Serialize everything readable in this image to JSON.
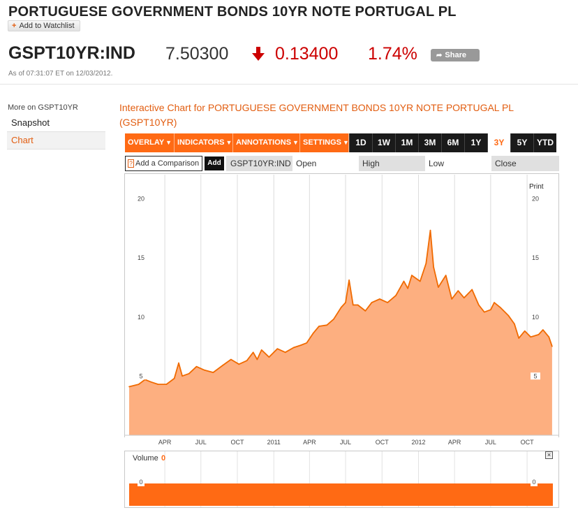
{
  "header": {
    "title": "PORTUGUESE GOVERNMENT BONDS 10YR NOTE PORTUGAL PL",
    "watchlist_label": "Add to Watchlist"
  },
  "quote": {
    "symbol": "GSPT10YR:IND",
    "price": "7.50300",
    "change": "0.13400",
    "change_pct": "1.74%",
    "direction": "down",
    "share_label": "Share",
    "as_of": "As of 07:31:07 ET on 12/03/2012."
  },
  "sidebar": {
    "heading": "More on GSPT10YR",
    "items": [
      {
        "label": "Snapshot"
      },
      {
        "label": "Chart"
      }
    ]
  },
  "chart_header": {
    "title": "Interactive Chart for PORTUGUESE GOVERNMENT BONDS 10YR NOTE PORTUGAL PL (GSPT10YR)"
  },
  "toolbar": {
    "menus": [
      "OVERLAY",
      "INDICATORS",
      "ANNOTATIONS",
      "SETTINGS"
    ],
    "ranges": [
      "1D",
      "1W",
      "1M",
      "3M",
      "6M",
      "1Y",
      "3Y",
      "5Y",
      "YTD"
    ],
    "active_range": "3Y"
  },
  "comparison": {
    "placeholder": "Add a Comparison",
    "help": "?",
    "add_label": "Add",
    "symbol": "GSPT10YR:IND",
    "open_label": "Open",
    "high_label": "High",
    "low_label": "Low",
    "close_label": "Close"
  },
  "print_label": "Print",
  "volume": {
    "label": "Volume",
    "value": "0",
    "close_glyph": "×",
    "axis_left": "0",
    "axis_right": "0"
  },
  "colors": {
    "accent": "#ff6a14",
    "line": "#f06a00",
    "fill": "#fdaf80",
    "down": "#cc0000"
  },
  "chart_data": {
    "type": "area",
    "title": "",
    "xlabel": "",
    "ylabel": "",
    "ylim": [
      0,
      22
    ],
    "yticks": [
      5,
      10,
      15,
      20
    ],
    "xlim": [
      "2010-01-01",
      "2012-12-05"
    ],
    "xticks": [
      {
        "label": "APR",
        "date": "2010-04-01"
      },
      {
        "label": "JUL",
        "date": "2010-07-01"
      },
      {
        "label": "OCT",
        "date": "2010-10-01"
      },
      {
        "label": "2011",
        "date": "2011-01-01"
      },
      {
        "label": "APR",
        "date": "2011-04-01"
      },
      {
        "label": "JUL",
        "date": "2011-07-01"
      },
      {
        "label": "OCT",
        "date": "2011-10-01"
      },
      {
        "label": "2012",
        "date": "2012-01-01"
      },
      {
        "label": "APR",
        "date": "2012-04-01"
      },
      {
        "label": "JUL",
        "date": "2012-07-01"
      },
      {
        "label": "OCT",
        "date": "2012-10-01"
      }
    ],
    "series": [
      {
        "points": [
          [
            "2010-01-01",
            4.1
          ],
          [
            "2010-01-25",
            4.3
          ],
          [
            "2010-02-10",
            4.7
          ],
          [
            "2010-02-25",
            4.5
          ],
          [
            "2010-03-15",
            4.3
          ],
          [
            "2010-04-05",
            4.3
          ],
          [
            "2010-04-25",
            4.8
          ],
          [
            "2010-05-06",
            6.1
          ],
          [
            "2010-05-15",
            5.0
          ],
          [
            "2010-06-01",
            5.2
          ],
          [
            "2010-06-20",
            5.8
          ],
          [
            "2010-07-10",
            5.5
          ],
          [
            "2010-08-01",
            5.3
          ],
          [
            "2010-08-25",
            5.9
          ],
          [
            "2010-09-15",
            6.4
          ],
          [
            "2010-10-05",
            6.0
          ],
          [
            "2010-10-25",
            6.3
          ],
          [
            "2010-11-10",
            7.0
          ],
          [
            "2010-11-20",
            6.4
          ],
          [
            "2010-12-01",
            7.2
          ],
          [
            "2010-12-20",
            6.6
          ],
          [
            "2011-01-10",
            7.3
          ],
          [
            "2011-01-30",
            7.0
          ],
          [
            "2011-02-20",
            7.4
          ],
          [
            "2011-03-10",
            7.6
          ],
          [
            "2011-03-25",
            7.8
          ],
          [
            "2011-04-10",
            8.6
          ],
          [
            "2011-04-25",
            9.2
          ],
          [
            "2011-05-15",
            9.3
          ],
          [
            "2011-06-01",
            9.8
          ],
          [
            "2011-06-20",
            10.8
          ],
          [
            "2011-07-01",
            11.2
          ],
          [
            "2011-07-10",
            13.1
          ],
          [
            "2011-07-20",
            11.0
          ],
          [
            "2011-08-01",
            11.0
          ],
          [
            "2011-08-20",
            10.5
          ],
          [
            "2011-09-05",
            11.2
          ],
          [
            "2011-09-25",
            11.5
          ],
          [
            "2011-10-15",
            11.2
          ],
          [
            "2011-11-05",
            11.8
          ],
          [
            "2011-11-25",
            13.0
          ],
          [
            "2011-12-05",
            12.4
          ],
          [
            "2011-12-15",
            13.5
          ],
          [
            "2012-01-05",
            13.0
          ],
          [
            "2012-01-20",
            14.5
          ],
          [
            "2012-01-31",
            17.3
          ],
          [
            "2012-02-08",
            14.2
          ],
          [
            "2012-02-20",
            12.5
          ],
          [
            "2012-03-10",
            13.5
          ],
          [
            "2012-03-25",
            11.5
          ],
          [
            "2012-04-10",
            12.2
          ],
          [
            "2012-04-25",
            11.6
          ],
          [
            "2012-05-15",
            12.3
          ],
          [
            "2012-06-01",
            11.0
          ],
          [
            "2012-06-15",
            10.4
          ],
          [
            "2012-07-01",
            10.6
          ],
          [
            "2012-07-10",
            11.2
          ],
          [
            "2012-07-25",
            10.8
          ],
          [
            "2012-08-15",
            10.1
          ],
          [
            "2012-08-30",
            9.4
          ],
          [
            "2012-09-10",
            8.2
          ],
          [
            "2012-09-25",
            8.8
          ],
          [
            "2012-10-10",
            8.3
          ],
          [
            "2012-10-30",
            8.5
          ],
          [
            "2012-11-10",
            8.9
          ],
          [
            "2012-11-25",
            8.3
          ],
          [
            "2012-12-03",
            7.5
          ]
        ]
      }
    ],
    "grid": {
      "vertical": true,
      "horizontal": false
    },
    "legend": "none"
  }
}
